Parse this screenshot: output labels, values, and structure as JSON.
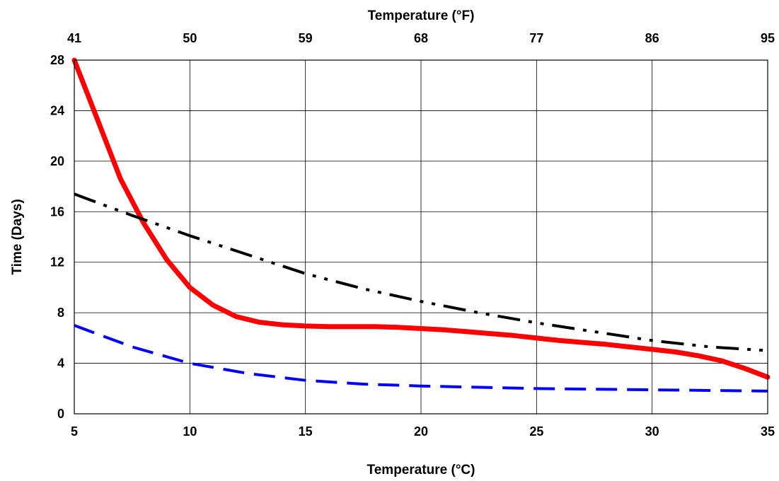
{
  "chart_data": {
    "type": "line",
    "xlabel": "Temperature (°C)",
    "x2label": "Temperature (°F)",
    "ylabel": "Time (Days)",
    "xlim": [
      5,
      35
    ],
    "ylim": [
      0,
      28
    ],
    "x_ticks": [
      5,
      10,
      15,
      20,
      25,
      30,
      35
    ],
    "y_ticks": [
      0,
      4,
      8,
      12,
      16,
      20,
      24,
      28
    ],
    "x_tick_labels": [
      "5",
      "10",
      "15",
      "20",
      "25",
      "30",
      "35"
    ],
    "x2_tick_labels": [
      "41",
      "50",
      "59",
      "68",
      "77",
      "86",
      "95"
    ],
    "y_tick_labels": [
      "0",
      "4",
      "8",
      "12",
      "16",
      "20",
      "24",
      "28"
    ],
    "grid": true,
    "series": [
      {
        "color": "#ff0000",
        "style": "solid",
        "x": [
          5,
          6,
          7,
          8,
          9,
          10,
          11,
          12,
          13,
          14,
          15,
          16,
          17,
          18,
          19,
          20,
          21,
          22,
          23,
          24,
          25,
          26,
          27,
          28,
          29,
          30,
          31,
          32,
          33,
          34,
          35
        ],
        "y": [
          28,
          23.3,
          18.6,
          15.1,
          12.2,
          10,
          8.6,
          7.7,
          7.25,
          7.05,
          6.95,
          6.9,
          6.9,
          6.9,
          6.85,
          6.75,
          6.65,
          6.5,
          6.35,
          6.2,
          6.0,
          5.8,
          5.65,
          5.5,
          5.3,
          5.1,
          4.9,
          4.6,
          4.2,
          3.6,
          2.9
        ]
      },
      {
        "color": "#000000",
        "style": "dash-dot-dot",
        "x": [
          5,
          7.5,
          10,
          12.5,
          15,
          17.5,
          20,
          22.5,
          25,
          27.5,
          30,
          32.5,
          35
        ],
        "y": [
          17.4,
          15.7,
          14.1,
          12.6,
          11.1,
          9.9,
          8.9,
          8.0,
          7.2,
          6.5,
          5.8,
          5.3,
          5.0
        ]
      },
      {
        "color": "#0000ff",
        "style": "dashed",
        "x": [
          5,
          7.5,
          10,
          12.5,
          15,
          17.5,
          20,
          22.5,
          25,
          27.5,
          30,
          32.5,
          35
        ],
        "y": [
          7.0,
          5.3,
          4.0,
          3.2,
          2.65,
          2.35,
          2.2,
          2.1,
          2.0,
          1.95,
          1.9,
          1.85,
          1.8
        ]
      }
    ]
  }
}
